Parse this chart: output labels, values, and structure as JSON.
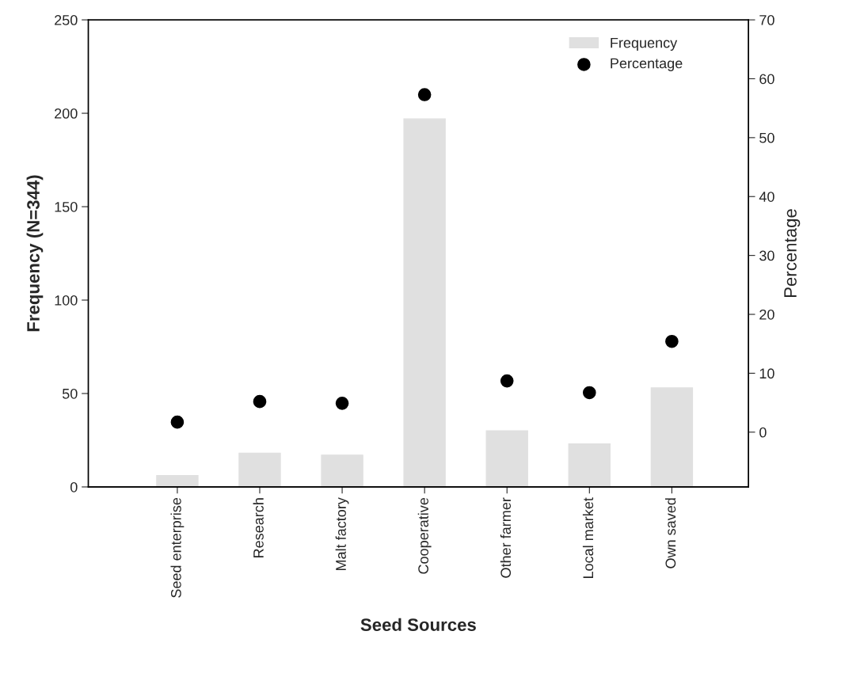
{
  "chart_data": {
    "type": "bar",
    "xlabel": "Seed Sources",
    "ylabel": "Frequency (N=344)",
    "y2label": "Percentage",
    "categories": [
      "Seed enterprise",
      "Research",
      "Malt factory",
      "Cooperative",
      "Other farmer",
      "Local market",
      "Own saved"
    ],
    "series": [
      {
        "name": "Frequency",
        "color": "#e0e0e0",
        "values": [
          6,
          18,
          17,
          197,
          30,
          23,
          53
        ]
      },
      {
        "name": "Percentage",
        "type": "scatter",
        "axis": "y2",
        "color": "#000000",
        "marker": "circle",
        "values": [
          1.7,
          5.2,
          4.9,
          57.3,
          8.7,
          6.7,
          15.4
        ]
      }
    ],
    "ylim": [
      0,
      250
    ],
    "yticks": [
      0,
      50,
      100,
      150,
      200,
      250
    ],
    "y2lim": [
      -9.3,
      70
    ],
    "y2ticks": [
      0,
      10,
      20,
      30,
      40,
      50,
      60,
      70
    ],
    "grid": false,
    "legend": "top right"
  }
}
